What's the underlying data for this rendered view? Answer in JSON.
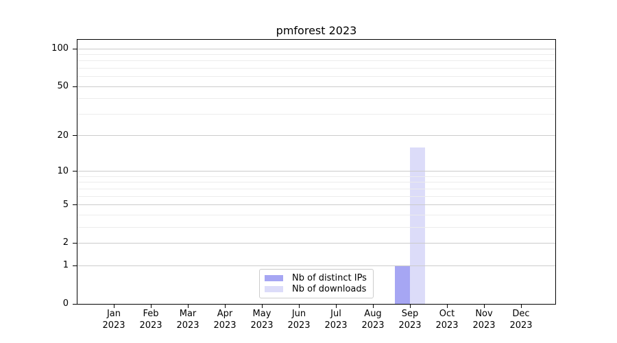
{
  "chart_data": {
    "type": "bar",
    "title": "pmforest 2023",
    "categories": [
      "Jan 2023",
      "Feb 2023",
      "Mar 2023",
      "Apr 2023",
      "May 2023",
      "Jun 2023",
      "Jul 2023",
      "Aug 2023",
      "Sep 2023",
      "Oct 2023",
      "Nov 2023",
      "Dec 2023"
    ],
    "series": [
      {
        "name": "Nb of distinct IPs",
        "color": "#a6a6f3",
        "values": [
          0,
          0,
          0,
          0,
          0,
          0,
          0,
          0,
          1,
          0,
          0,
          0
        ]
      },
      {
        "name": "Nb of downloads",
        "color": "#dcdcf9",
        "values": [
          0,
          0,
          0,
          0,
          0,
          0,
          0,
          0,
          16,
          0,
          0,
          0
        ]
      }
    ],
    "yscale": "log1p",
    "ylim": [
      0,
      118
    ],
    "y_major_ticks": [
      0,
      1,
      2,
      5,
      10,
      20,
      50,
      100
    ],
    "y_minor_ticks": [
      3,
      4,
      6,
      7,
      8,
      9,
      30,
      40,
      60,
      70,
      80,
      90
    ],
    "grid": "horizontal",
    "legend_position": "inside lower center"
  },
  "style": {
    "background": "#ffffff",
    "axis_color": "#000000",
    "text_color": "#000000",
    "grid_major_color": "#cbcbcb",
    "grid_minor_color": "#ececec",
    "legend_border_color": "#cccccc",
    "bar_distinct_ips_color": "#a6a6f3",
    "bar_downloads_color": "#dcdcf9"
  }
}
